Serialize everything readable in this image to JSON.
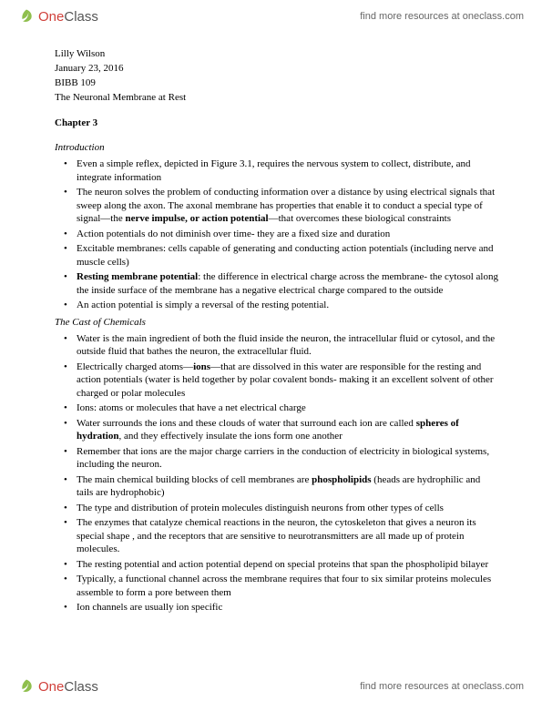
{
  "brand": {
    "one": "One",
    "class": "Class",
    "tagline": "find more resources at oneclass.com"
  },
  "meta": {
    "author": "Lilly Wilson",
    "date": "January 23, 2016",
    "course": "BIBB 109",
    "title": "The Neuronal Membrane at Rest"
  },
  "chapter": "Chapter 3",
  "sections": [
    {
      "heading": "Introduction",
      "bullets": [
        [
          {
            "t": "Even a simple reflex, depicted in Figure 3.1, requires the nervous system to collect, distribute, and integrate information"
          }
        ],
        [
          {
            "t": "The neuron solves the problem of conducting information over a distance by using electrical signals that sweep along the axon. The axonal membrane has properties that enable it to conduct a special type of signal—the "
          },
          {
            "t": "nerve impulse, or action potential",
            "b": true
          },
          {
            "t": "—that overcomes these biological constraints"
          }
        ],
        [
          {
            "t": "Action potentials do not diminish over time- they are a fixed size and duration"
          }
        ],
        [
          {
            "t": "Excitable membranes: cells capable of generating and conducting action potentials (including nerve and muscle cells)"
          }
        ],
        [
          {
            "t": "Resting membrane potential",
            "b": true
          },
          {
            "t": ": the difference in electrical charge across the membrane- the cytosol along the inside surface of the membrane has a negative electrical charge compared to the outside"
          }
        ],
        [
          {
            "t": "An action potential is simply a reversal of the resting potential."
          }
        ]
      ]
    },
    {
      "heading": "The Cast of Chemicals",
      "bullets": [
        [
          {
            "t": "Water is the main ingredient of both the fluid inside the neuron, the intracellular fluid or cytosol, and the outside fluid that bathes the neuron, the extracellular fluid."
          }
        ],
        [
          {
            "t": "Electrically charged atoms—"
          },
          {
            "t": "ions",
            "b": true
          },
          {
            "t": "—that are dissolved in this water are responsible for the resting and action potentials (water is held together by polar covalent bonds- making it an excellent solvent of other charged or polar molecules"
          }
        ],
        [
          {
            "t": "Ions: atoms or molecules that have a net electrical charge"
          }
        ],
        [
          {
            "t": "Water surrounds the ions and these clouds of water that surround each ion are called "
          },
          {
            "t": "spheres of hydration",
            "b": true
          },
          {
            "t": ", and they effectively insulate the ions form one another"
          }
        ],
        [
          {
            "t": "Remember that ions are the major charge carriers in the conduction of electricity in biological systems, including the neuron."
          }
        ],
        [
          {
            "t": "The main chemical building blocks of cell membranes are "
          },
          {
            "t": "phospholipids",
            "b": true
          },
          {
            "t": " (heads are hydrophilic and tails are hydrophobic)"
          }
        ],
        [
          {
            "t": "The type and distribution of protein molecules distinguish neurons from other types of cells"
          }
        ],
        [
          {
            "t": "The enzymes that catalyze chemical reactions in the neuron, the cytoskeleton that gives a neuron its special shape , and the receptors that are sensitive to neurotransmitters are all made up of protein molecules."
          }
        ],
        [
          {
            "t": "The resting potential and action potential depend on special proteins that span the phospholipid bilayer"
          }
        ],
        [
          {
            "t": "Typically, a functional channel across the membrane requires that four to six similar proteins molecules assemble to form a pore between them"
          }
        ],
        [
          {
            "t": "Ion channels are usually ion specific"
          }
        ]
      ]
    }
  ]
}
